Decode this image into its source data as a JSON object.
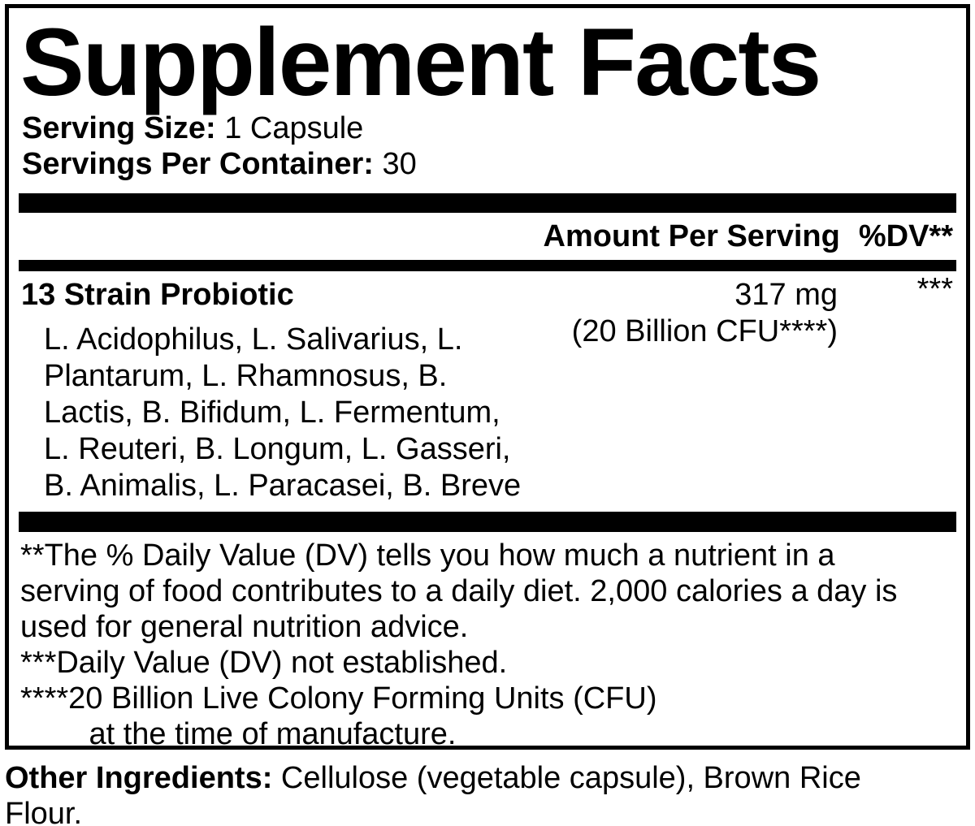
{
  "colors": {
    "ink": "#000000",
    "background": "#ffffff"
  },
  "panel": {
    "title": "Supplement Facts",
    "serving": {
      "size_label": "Serving Size:",
      "size_value": " 1 Capsule",
      "per_container_label": "Servings Per Container:",
      "per_container_value": " 30"
    },
    "column_header": {
      "amount_label": "Amount Per Serving",
      "dv_label": "%DV**"
    },
    "main_row": {
      "name": "13 Strain Probiotic",
      "amount": "317 mg",
      "amount_detail": "(20 Billion CFU****)",
      "dv": "***",
      "ingredient_lines": [
        "L. Acidophilus, L. Salivarius, L.",
        "Plantarum, L. Rhamnosus, B.",
        "Lactis, B. Bifidum, L. Fermentum,",
        "L. Reuteri, B. Longum, L. Gasseri,",
        "B. Animalis, L. Paracasei, B. Breve"
      ]
    },
    "footnote_lines": [
      "**The % Daily Value (DV) tells you how much a nutrient in a",
      "serving of food contributes to a daily diet. 2,000 calories a day is",
      "used for general nutrition advice.",
      "***Daily Value (DV) not established.",
      "****20 Billion Live Colony Forming Units (CFU)",
      "        at the time of manufacture."
    ]
  },
  "other_ingredients": {
    "label": "Other Ingredients:",
    "value": " Cellulose (vegetable capsule), Brown Rice Flour."
  }
}
